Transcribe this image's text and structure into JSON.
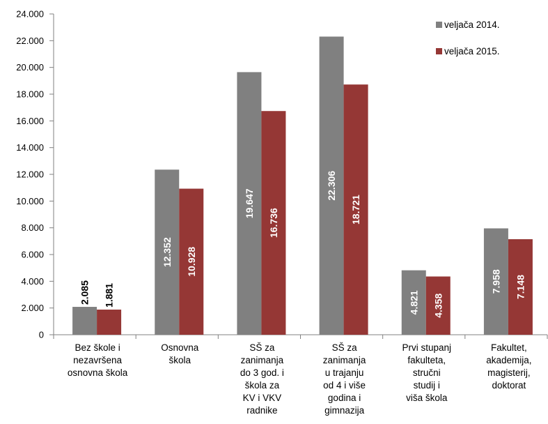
{
  "chart_data": {
    "type": "bar",
    "title": "",
    "xlabel": "",
    "ylabel": "",
    "ylim": [
      0,
      24000
    ],
    "y_ticks": [
      0,
      2000,
      4000,
      6000,
      8000,
      10000,
      12000,
      14000,
      16000,
      18000,
      20000,
      22000,
      24000
    ],
    "y_tick_labels": [
      "0",
      "2.000",
      "4.000",
      "6.000",
      "8.000",
      "10.000",
      "12.000",
      "14.000",
      "16.000",
      "18.000",
      "20.000",
      "22.000",
      "24.000"
    ],
    "categories": [
      [
        "Bez škole i",
        "nezavršena",
        "osnovna škola"
      ],
      [
        "Osnovna",
        "škola"
      ],
      [
        "SŠ za",
        "zanimanja",
        "do 3 god. i",
        "škola za",
        "KV i VKV",
        "radnike"
      ],
      [
        "SŠ za",
        "zanimanja",
        "u trajanju",
        "od 4 i više",
        "godina i",
        "gimnazija"
      ],
      [
        "Prvi stupanj",
        "fakulteta,",
        "stručni",
        "studij i",
        "viša škola"
      ],
      [
        "Fakultet,",
        "akademija,",
        "magisterij,",
        "doktorat"
      ]
    ],
    "series": [
      {
        "name": "veljača 2014.",
        "color": "#808080",
        "values": [
          2085,
          12352,
          19647,
          22306,
          4821,
          7958
        ],
        "labels": [
          "2.085",
          "12.352",
          "19.647",
          "22.306",
          "4.821",
          "7.958"
        ]
      },
      {
        "name": "veljača 2015.",
        "color": "#953735",
        "values": [
          1881,
          10928,
          16736,
          18721,
          4358,
          7148
        ],
        "labels": [
          "1.881",
          "10.928",
          "16.736",
          "18.721",
          "4.358",
          "7.148"
        ]
      }
    ],
    "legend_position": "top-right",
    "grid": false
  }
}
